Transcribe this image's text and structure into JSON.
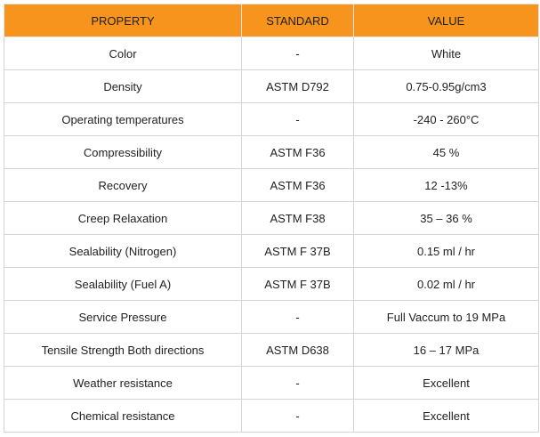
{
  "table": {
    "headers": [
      "PROPERTY",
      "STANDARD",
      "VALUE"
    ],
    "rows": [
      [
        "Color",
        "-",
        "White"
      ],
      [
        "Density",
        "ASTM D792",
        "0.75-0.95g/cm3"
      ],
      [
        "Operating temperatures",
        "-",
        "-240 - 260°C"
      ],
      [
        "Compressibility",
        "ASTM F36",
        "45 %"
      ],
      [
        "Recovery",
        "ASTM F36",
        "12 -13%"
      ],
      [
        "Creep Relaxation",
        "ASTM F38",
        "35 – 36 %"
      ],
      [
        "Sealability (Nitrogen)",
        "ASTM F 37B",
        "0.15 ml / hr"
      ],
      [
        "Sealability (Fuel A)",
        "ASTM F 37B",
        "0.02 ml / hr"
      ],
      [
        "Service Pressure",
        "-",
        "Full Vaccum to 19 MPa"
      ],
      [
        "Tensile Strength Both directions",
        "ASTM D638",
        "16 – 17 MPa"
      ],
      [
        "Weather resistance",
        "-",
        "Excellent"
      ],
      [
        "Chemical resistance",
        "-",
        "Excellent"
      ]
    ]
  },
  "colors": {
    "header_background": "#f7941d",
    "border": "#d4d4d4",
    "text": "#222222"
  }
}
